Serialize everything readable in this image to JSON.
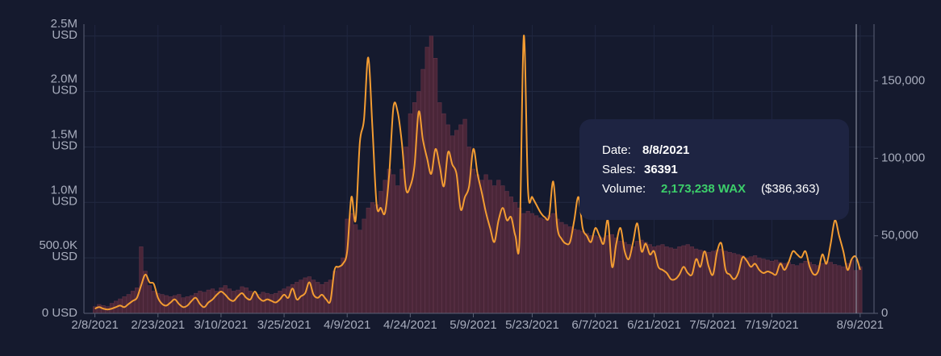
{
  "chart_data": {
    "type": "bar",
    "categories": [
      "2/8/2021",
      null,
      null,
      null,
      null,
      null,
      null,
      null,
      null,
      null,
      null,
      null,
      null,
      null,
      null,
      "2/23/2021",
      null,
      null,
      null,
      null,
      null,
      null,
      null,
      null,
      null,
      null,
      null,
      null,
      null,
      null,
      "3/10/2021",
      null,
      null,
      null,
      null,
      null,
      null,
      null,
      null,
      null,
      null,
      null,
      null,
      null,
      null,
      "3/25/2021",
      null,
      null,
      null,
      null,
      null,
      null,
      null,
      null,
      null,
      null,
      null,
      null,
      null,
      null,
      "4/9/2021",
      null,
      null,
      null,
      null,
      null,
      null,
      null,
      null,
      null,
      null,
      null,
      null,
      null,
      null,
      "4/24/2021",
      null,
      null,
      null,
      null,
      null,
      null,
      null,
      null,
      null,
      null,
      null,
      null,
      null,
      null,
      "5/9/2021",
      null,
      null,
      null,
      null,
      null,
      null,
      null,
      null,
      null,
      null,
      null,
      null,
      null,
      "5/23/2021",
      null,
      null,
      null,
      null,
      null,
      null,
      null,
      null,
      null,
      null,
      null,
      null,
      null,
      null,
      "6/7/2021",
      null,
      null,
      null,
      null,
      null,
      null,
      null,
      null,
      null,
      null,
      null,
      null,
      null,
      "6/21/2021",
      null,
      null,
      null,
      null,
      null,
      null,
      null,
      null,
      null,
      null,
      null,
      null,
      null,
      "7/5/2021",
      null,
      null,
      null,
      null,
      null,
      null,
      null,
      null,
      null,
      null,
      null,
      null,
      null,
      "7/19/2021",
      null,
      null,
      null,
      null,
      null,
      null,
      null,
      null,
      null,
      null,
      null,
      null,
      null,
      null,
      null,
      null,
      null,
      null,
      null,
      null,
      "8/9/2021"
    ],
    "series": [
      {
        "type": "bar",
        "color": "#4a2638",
        "values": [
          60000,
          80000,
          70000,
          60000,
          90000,
          110000,
          130000,
          150000,
          170000,
          200000,
          230000,
          600000,
          380000,
          250000,
          200000,
          180000,
          170000,
          160000,
          150000,
          160000,
          170000,
          140000,
          150000,
          160000,
          180000,
          200000,
          190000,
          210000,
          220000,
          200000,
          230000,
          250000,
          220000,
          200000,
          210000,
          240000,
          230000,
          200000,
          180000,
          170000,
          190000,
          180000,
          170000,
          180000,
          200000,
          220000,
          240000,
          260000,
          280000,
          300000,
          320000,
          330000,
          300000,
          280000,
          260000,
          280000,
          300000,
          380000,
          420000,
          500000,
          850000,
          900000,
          800000,
          750000,
          850000,
          950000,
          1000000,
          980000,
          1100000,
          1200000,
          1300000,
          1250000,
          1150000,
          1300000,
          1500000,
          1800000,
          1900000,
          2000000,
          2200000,
          2400000,
          2500000,
          2300000,
          1900000,
          1800000,
          1700000,
          1600000,
          1650000,
          1700000,
          1750000,
          1500000,
          1300000,
          1250000,
          1200000,
          1250000,
          1200000,
          1150000,
          1200000,
          1150000,
          1100000,
          1050000,
          1000000,
          950000,
          900000,
          920000,
          900000,
          880000,
          860000,
          850000,
          880000,
          900000,
          850000,
          820000,
          800000,
          780000,
          760000,
          750000,
          740000,
          720000,
          700000,
          700000,
          690000,
          680000,
          700000,
          710000,
          680000,
          650000,
          640000,
          620000,
          600000,
          650000,
          660000,
          640000,
          620000,
          600000,
          610000,
          620000,
          600000,
          590000,
          580000,
          600000,
          610000,
          620000,
          600000,
          580000,
          570000,
          560000,
          550000,
          560000,
          570000,
          580000,
          560000,
          550000,
          540000,
          530000,
          520000,
          500000,
          510000,
          520000,
          500000,
          490000,
          480000,
          470000,
          480000,
          460000,
          450000,
          460000,
          440000,
          430000,
          450000,
          470000,
          460000,
          440000,
          430000,
          450000,
          470000,
          460000,
          440000,
          430000,
          420000,
          450000,
          480000,
          386363,
          420000
        ]
      },
      {
        "type": "line",
        "axis": "y2",
        "color": "#f39c32",
        "values": [
          3000,
          4000,
          3000,
          2500,
          3000,
          4000,
          5000,
          4000,
          6000,
          8000,
          10000,
          18000,
          25000,
          20000,
          19000,
          10000,
          6000,
          5000,
          7000,
          9000,
          6000,
          4000,
          5000,
          8000,
          10000,
          6000,
          4000,
          7000,
          9000,
          12000,
          14000,
          12000,
          9000,
          8000,
          11000,
          13000,
          10000,
          9000,
          14000,
          10000,
          8000,
          9000,
          8000,
          7000,
          9000,
          12000,
          10000,
          16000,
          9000,
          11000,
          13000,
          20000,
          12000,
          10000,
          12000,
          9000,
          8000,
          28000,
          30000,
          32000,
          40000,
          75000,
          60000,
          110000,
          125000,
          165000,
          120000,
          70000,
          68000,
          65000,
          90000,
          133000,
          130000,
          110000,
          80000,
          82000,
          95000,
          130000,
          112000,
          100000,
          90000,
          106000,
          95000,
          82000,
          104000,
          96000,
          90000,
          67000,
          75000,
          82000,
          106000,
          90000,
          78000,
          65000,
          55000,
          46000,
          60000,
          68000,
          60000,
          62000,
          50000,
          48000,
          179000,
          80000,
          75000,
          70000,
          65000,
          62000,
          62000,
          85000,
          55000,
          48000,
          45000,
          46000,
          60000,
          75000,
          55000,
          50000,
          46000,
          55000,
          50000,
          45000,
          60000,
          30000,
          45000,
          55000,
          40000,
          35000,
          46000,
          58000,
          40000,
          45000,
          38000,
          40000,
          30000,
          28000,
          26000,
          22000,
          22000,
          25000,
          30000,
          26000,
          25000,
          35000,
          30000,
          40000,
          30000,
          25000,
          40000,
          45000,
          28000,
          25000,
          22000,
          26000,
          36000,
          34000,
          30000,
          32000,
          28000,
          26000,
          27000,
          26000,
          25000,
          32000,
          28000,
          33000,
          40000,
          38000,
          36000,
          40000,
          30000,
          25000,
          27000,
          38000,
          32000,
          45000,
          60000,
          50000,
          40000,
          28000,
          35000,
          36391,
          28000
        ]
      }
    ],
    "ylim": [
      0,
      2600000
    ],
    "yticks": [
      {
        "value": 0,
        "label": "0 USD"
      },
      {
        "value": 500000,
        "label": "500.0K\nUSD"
      },
      {
        "value": 1000000,
        "label": "1.0M\nUSD"
      },
      {
        "value": 1500000,
        "label": "1.5M\nUSD"
      },
      {
        "value": 2000000,
        "label": "2.0M\nUSD"
      },
      {
        "value": 2500000,
        "label": "2.5M\nUSD"
      }
    ],
    "y2lim": [
      0,
      186000
    ],
    "y2ticks": [
      0,
      {
        "value": 50000,
        "label": "50,000"
      },
      {
        "value": 100000,
        "label": "100,000"
      },
      {
        "value": 150000,
        "label": "150,000"
      }
    ],
    "grid": true,
    "tooltip": {
      "date_label": "Date:",
      "date": "8/8/2021",
      "sales_label": "Sales:",
      "sales": "36391",
      "volume_label": "Volume:",
      "volume": "2,173,238 WAX",
      "volume_usd": "($386,363)"
    }
  }
}
